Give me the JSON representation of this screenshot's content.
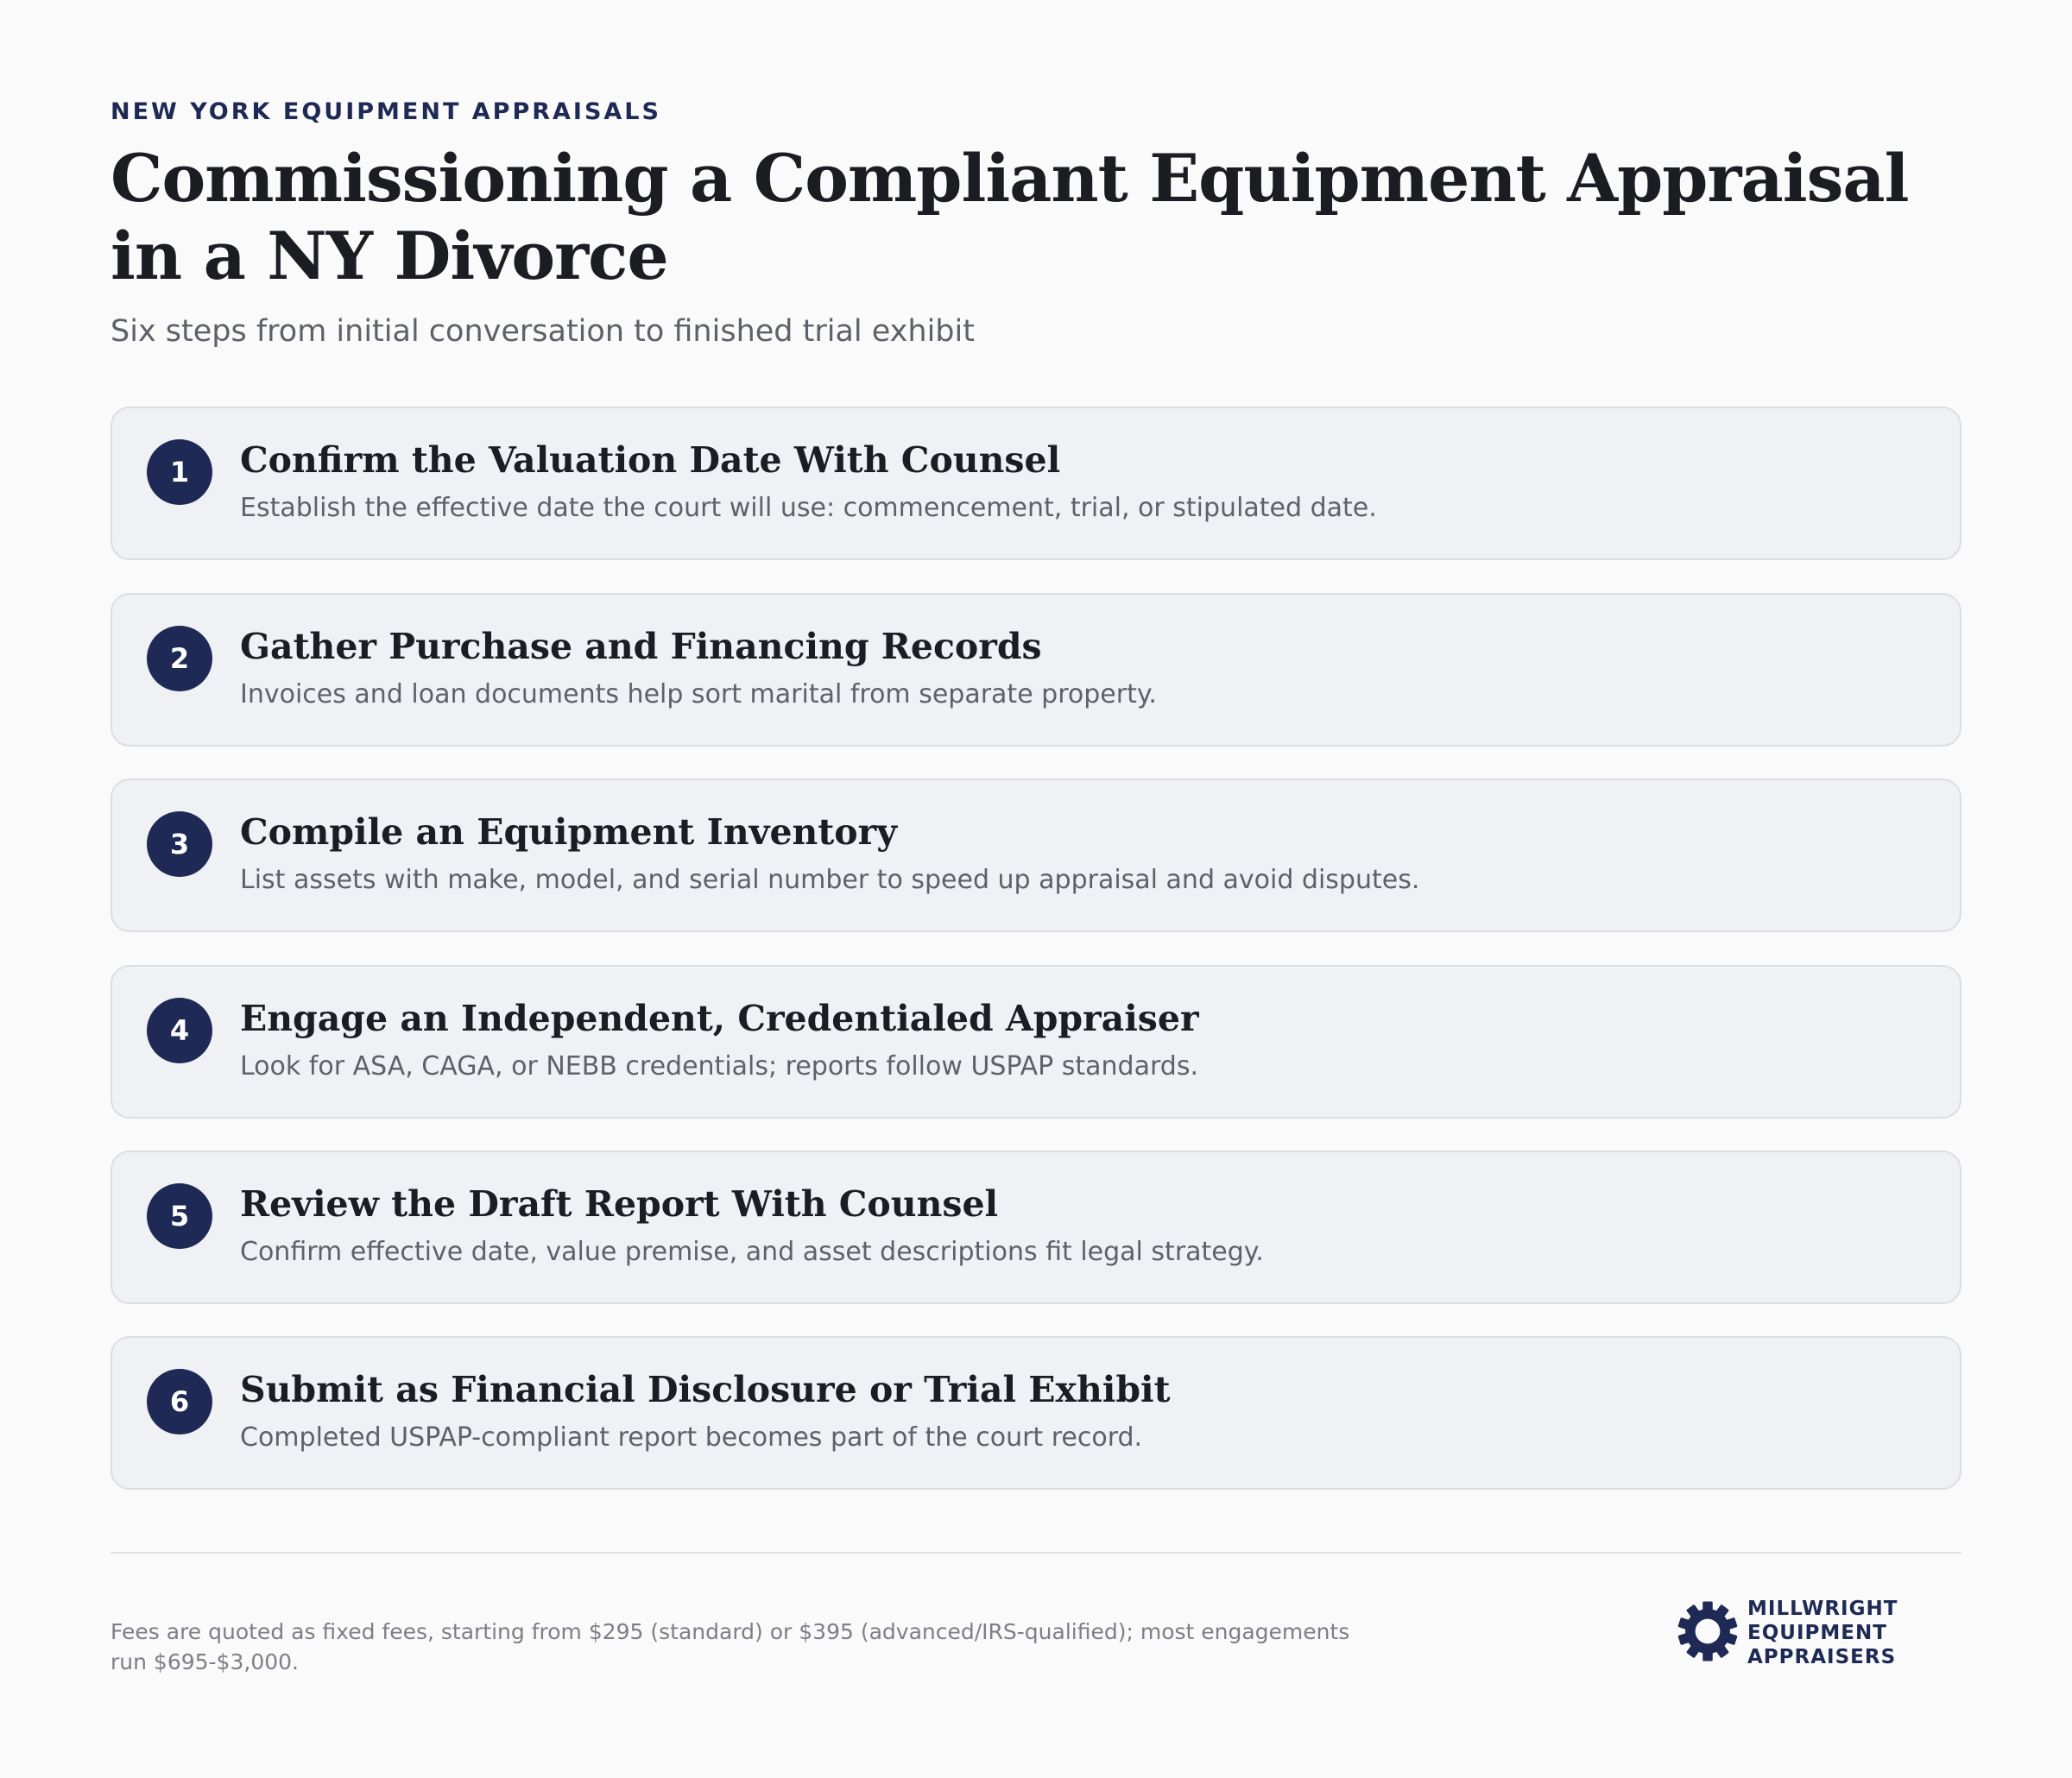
{
  "header": {
    "eyebrow": "NEW YORK EQUIPMENT APPRAISALS",
    "title": "Commissioning a Compliant Equipment Appraisal in a NY Divorce",
    "subtitle": "Six steps from initial conversation to finished trial exhibit"
  },
  "steps": [
    {
      "number": "1",
      "title": "Confirm the Valuation Date With Counsel",
      "description": "Establish the effective date the court will use: commencement, trial, or stipulated date."
    },
    {
      "number": "2",
      "title": "Gather Purchase and Financing Records",
      "description": "Invoices and loan documents help sort marital from separate property."
    },
    {
      "number": "3",
      "title": "Compile an Equipment Inventory",
      "description": "List assets with make, model, and serial number to speed up appraisal and avoid disputes."
    },
    {
      "number": "4",
      "title": "Engage an Independent, Credentialed Appraiser",
      "description": "Look for ASA, CAGA, or NEBB credentials; reports follow USPAP standards."
    },
    {
      "number": "5",
      "title": "Review the Draft Report With Counsel",
      "description": "Confirm effective date, value premise, and asset descriptions fit legal strategy."
    },
    {
      "number": "6",
      "title": "Submit as Financial Disclosure or Trial Exhibit",
      "description": "Completed USPAP-compliant report becomes part of the court record."
    }
  ],
  "footer": {
    "note": "Fees are quoted as fixed fees, starting from $295 (standard) or $395 (advanced/IRS-qualified); most engagements run $695-$3,000.",
    "logo_lines": [
      "MILLWRIGHT",
      "EQUIPMENT",
      "APPRAISERS"
    ],
    "logo_icon": "gear-icon"
  },
  "colors": {
    "accent": "#1e2a55",
    "background": "#fafafa",
    "card": "#f0f1f4",
    "card_border": "#dcdde2",
    "muted_text": "#5f6168"
  }
}
